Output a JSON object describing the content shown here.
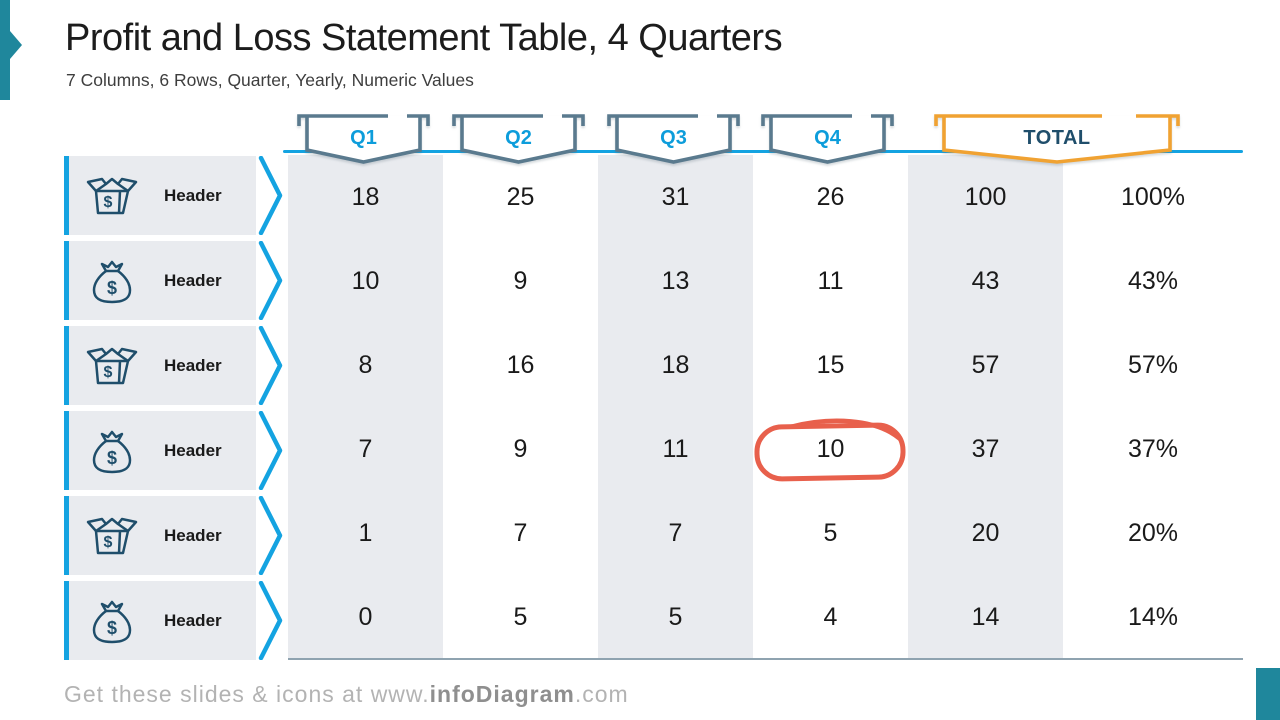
{
  "slide": {
    "title": "Profit and Loss Statement Table, 4 Quarters",
    "subtitle": "7 Columns, 6 Rows, Quarter, Yearly, Numeric Values",
    "footer": {
      "prefix": "Get these slides & icons at www.",
      "brand": "infoDiagram",
      "suffix": ".com"
    }
  },
  "colors": {
    "teal_accent": "#1F879C",
    "bright_blue": "#14A3E1",
    "quarter_text_blue": "#0D9DDB",
    "banner_outline_slate": "#5A7A8E",
    "total_outline_orange": "#F0A232",
    "navy": "#1F4E6B",
    "column_shade": "#E9EBEF",
    "marker_red": "#E8604C",
    "table_border": "#8FA3B0",
    "footer_gray": "#B3B3B3",
    "footer_brand_gray": "#8F8F8F"
  },
  "table": {
    "banners": [
      {
        "label": "Q1",
        "style": "quarter"
      },
      {
        "label": "Q2",
        "style": "quarter"
      },
      {
        "label": "Q3",
        "style": "quarter"
      },
      {
        "label": "Q4",
        "style": "quarter"
      },
      {
        "label": "TOTAL",
        "style": "total"
      }
    ],
    "rows": [
      {
        "icon": "open-box-dollar-icon",
        "label": "Header",
        "values": [
          "18",
          "25",
          "31",
          "26",
          "100",
          "100%"
        ]
      },
      {
        "icon": "money-bag-icon",
        "label": "Header",
        "values": [
          "10",
          "9",
          "13",
          "11",
          "43",
          "43%"
        ]
      },
      {
        "icon": "open-box-dollar-icon",
        "label": "Header",
        "values": [
          "8",
          "16",
          "18",
          "15",
          "57",
          "57%"
        ]
      },
      {
        "icon": "money-bag-icon",
        "label": "Header",
        "values": [
          "7",
          "9",
          "11",
          "10",
          "37",
          "37%"
        ]
      },
      {
        "icon": "open-box-dollar-icon",
        "label": "Header",
        "values": [
          "1",
          "7",
          "7",
          "5",
          "20",
          "20%"
        ]
      },
      {
        "icon": "money-bag-icon",
        "label": "Header",
        "values": [
          "0",
          "5",
          "5",
          "4",
          "14",
          "14%"
        ]
      }
    ],
    "highlight": {
      "row_index": 3,
      "col_index": 3,
      "value": "10",
      "style": "hand-drawn-red-circle"
    }
  },
  "chart_data": {
    "type": "table",
    "title": "Profit and Loss Statement Table, 4 Quarters",
    "subtitle": "7 Columns, 6 Rows, Quarter, Yearly, Numeric Values",
    "columns": [
      "Q1",
      "Q2",
      "Q3",
      "Q4",
      "TOTAL",
      "%"
    ],
    "row_labels": [
      "Header",
      "Header",
      "Header",
      "Header",
      "Header",
      "Header"
    ],
    "rows": [
      [
        18,
        25,
        31,
        26,
        100,
        "100%"
      ],
      [
        10,
        9,
        13,
        11,
        43,
        "43%"
      ],
      [
        8,
        16,
        18,
        15,
        57,
        "57%"
      ],
      [
        7,
        9,
        11,
        10,
        37,
        "37%"
      ],
      [
        1,
        7,
        7,
        5,
        20,
        "20%"
      ],
      [
        0,
        5,
        5,
        4,
        14,
        "14%"
      ]
    ],
    "annotations": [
      {
        "type": "circle-highlight",
        "row": 4,
        "column": "Q4",
        "value": 10,
        "color": "#E8604C"
      }
    ]
  }
}
